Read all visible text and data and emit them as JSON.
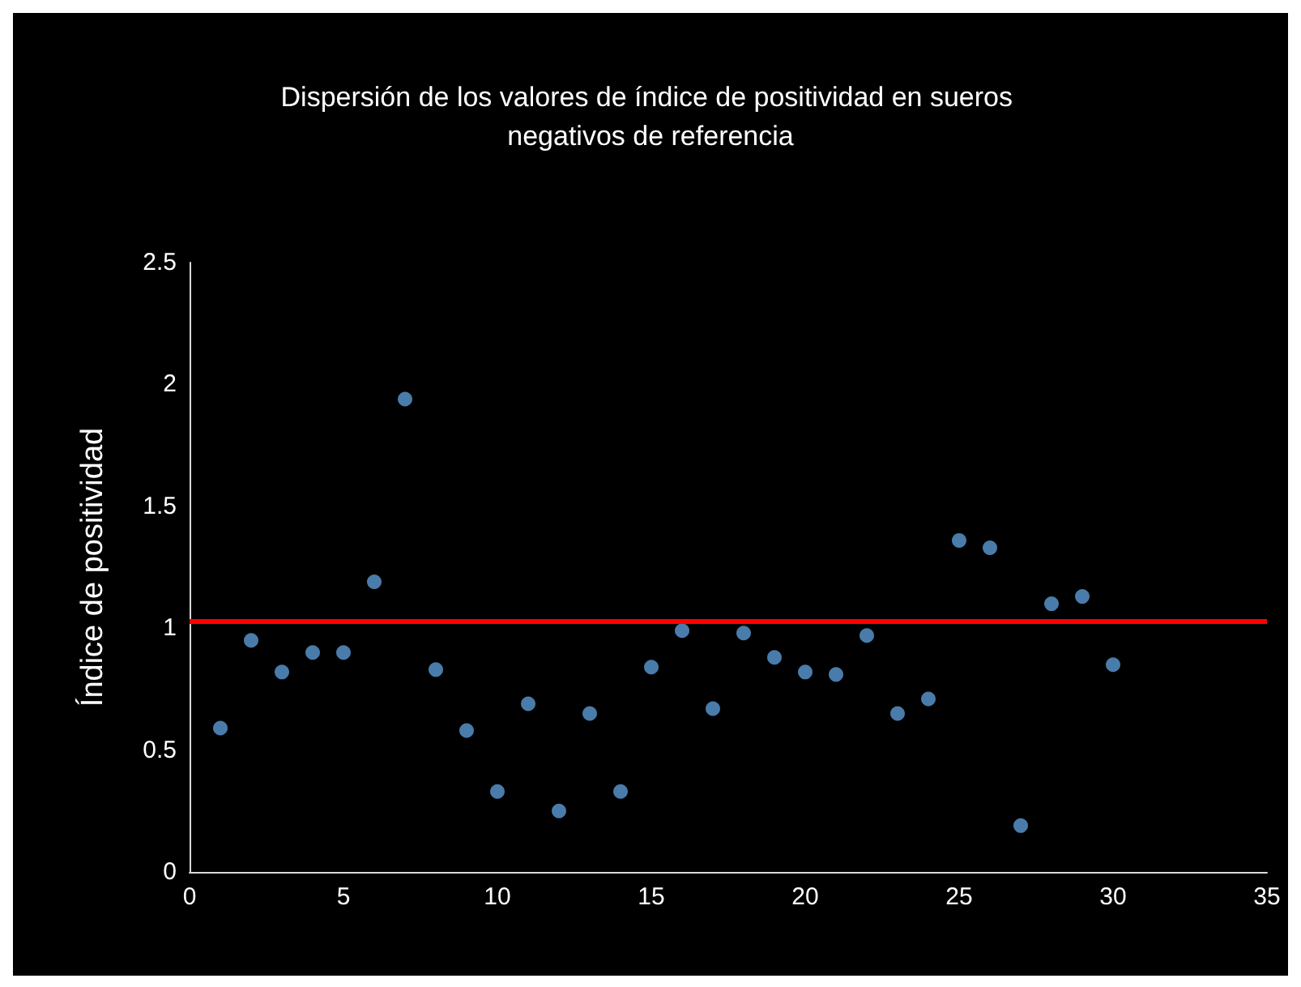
{
  "chart_data": {
    "type": "scatter",
    "title": "Dispersión de los valores de índice de positividad en sueros negativos de referencia",
    "ylabel": "Índice de positividad",
    "x": [
      1,
      2,
      3,
      4,
      5,
      6,
      7,
      8,
      9,
      10,
      11,
      12,
      13,
      14,
      15,
      16,
      17,
      18,
      19,
      20,
      21,
      22,
      23,
      24,
      25,
      26,
      27,
      28,
      29,
      30
    ],
    "series": [
      {
        "color": "#5b9bd5",
        "values": [
          0.59,
          0.95,
          0.82,
          0.9,
          0.9,
          1.19,
          1.94,
          0.83,
          0.58,
          0.33,
          0.69,
          0.25,
          0.65,
          0.33,
          0.84,
          0.99,
          0.67,
          0.98,
          0.88,
          0.82,
          0.81,
          0.97,
          0.65,
          0.71,
          1.36,
          1.33,
          0.19,
          1.1,
          1.13,
          0.85
        ]
      }
    ],
    "xlim": [
      0,
      35
    ],
    "xticks": [
      0,
      5,
      10,
      15,
      20,
      25,
      30,
      35
    ],
    "ylim": [
      0,
      2.5
    ],
    "yticks": [
      0,
      0.5,
      1,
      1.5,
      2,
      2.5
    ],
    "ref_lines": [
      {
        "axis": "y",
        "value": 1.03,
        "color": "#ff0000"
      }
    ],
    "grid": false,
    "marker": "circle"
  }
}
